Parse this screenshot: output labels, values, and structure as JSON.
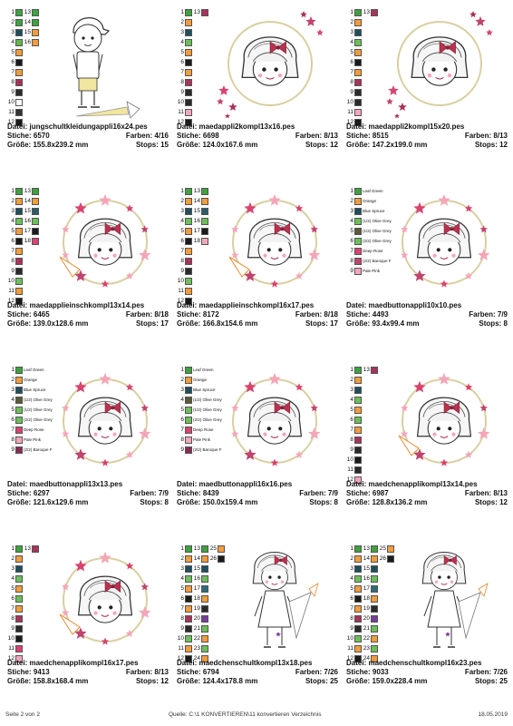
{
  "labels": {
    "file": "Datei:",
    "stitches": "Stiche:",
    "colors": "Farben:",
    "size": "Größe:",
    "stops": "Stops:"
  },
  "colors": {
    "1": "#3da33d",
    "2": "#f29c3c",
    "3": "#1f4e5e",
    "4": "#5fb84a",
    "5": "#f09a3c",
    "6": "#1a1a1a",
    "7": "#f29c3c",
    "8": "#a8325a",
    "9": "#2a2a2a",
    "10": "#ffffff",
    "11": "#333333",
    "12": "#1a1a1a",
    "13": "#c0446e",
    "14": "#f29c3c",
    "15": "#2b5a6a",
    "16": "#6bbf59",
    "17": "#1a1a1a",
    "18": "#d9436f",
    "19": "#f4a6b8",
    "20": "#8a2b52",
    "21": "#f29c3c",
    "22": "#2b2b2b",
    "23": "#6bbf59",
    "24": "#2d6b78",
    "25": "#e58a2e",
    "26": "#222222"
  },
  "cells": [
    {
      "file": "jungschultkleidungappli16x24.pes",
      "stitches": "6570",
      "colors": "4/16",
      "size": "155.8x239.2 mm",
      "stops": "15",
      "pic": "boy",
      "sw": [
        [
          "1",
          "#3da33d",
          "13",
          "#3da33d"
        ],
        [
          "2",
          "#3da33d",
          "14",
          "#3da33d"
        ],
        [
          "3",
          "#1f4e5e",
          "15",
          "#f29c3c"
        ],
        [
          "4",
          "#5fb84a",
          "16",
          "#f29c3c"
        ],
        [
          "5",
          "#f09a3c"
        ],
        [
          "6",
          "#1a1a1a"
        ],
        [
          "7",
          "#f29c3c"
        ],
        [
          "8",
          "#a8325a"
        ],
        [
          "9",
          "#2a2a2a"
        ],
        [
          "10",
          "#ffffff"
        ],
        [
          "11",
          "#333333"
        ],
        [
          "12",
          "#1a1a1a"
        ]
      ]
    },
    {
      "file": "maedappli2kompl13x16.pes",
      "stitches": "6698",
      "colors": "8/13",
      "size": "124.0x167.6 mm",
      "stops": "12",
      "pic": "girl-stars",
      "sw": [
        [
          "1",
          "#3da33d",
          "13",
          "#a8325a"
        ],
        [
          "2",
          "#f29c3c"
        ],
        [
          "3",
          "#1f4e5e"
        ],
        [
          "4",
          "#6bbf59"
        ],
        [
          "5",
          "#f29c3c"
        ],
        [
          "6",
          "#1a1a1a"
        ],
        [
          "7",
          "#f29c3c"
        ],
        [
          "8",
          "#a8325a"
        ],
        [
          "9",
          "#2a2a2a"
        ],
        [
          "10",
          "#2a2a2a"
        ],
        [
          "11",
          "#f4a6b8"
        ],
        [
          "12",
          "#1a1a1a"
        ]
      ]
    },
    {
      "file": "maedappli2kompl15x20.pes",
      "stitches": "8515",
      "colors": "8/13",
      "size": "147.2x199.0 mm",
      "stops": "12",
      "pic": "girl-stars",
      "sw": [
        [
          "1",
          "#3da33d",
          "13",
          "#a8325a"
        ],
        [
          "2",
          "#f29c3c"
        ],
        [
          "3",
          "#1f4e5e"
        ],
        [
          "4",
          "#6bbf59"
        ],
        [
          "5",
          "#f29c3c"
        ],
        [
          "6",
          "#1a1a1a"
        ],
        [
          "7",
          "#f29c3c"
        ],
        [
          "8",
          "#a8325a"
        ],
        [
          "9",
          "#2a2a2a"
        ],
        [
          "10",
          "#2a2a2a"
        ],
        [
          "11",
          "#f4a6b8"
        ],
        [
          "12",
          "#1a1a1a"
        ]
      ]
    },
    {
      "file": "maedapplieinschkompl13x14.pes",
      "stitches": "6465",
      "colors": "8/18",
      "size": "139.0x128.6 mm",
      "stops": "17",
      "pic": "girl-wreath",
      "sw": [
        [
          "1",
          "#3da33d",
          "13",
          "#3da33d"
        ],
        [
          "2",
          "#f29c3c",
          "14",
          "#f29c3c"
        ],
        [
          "3",
          "#1f4e5e",
          "15",
          "#2b5a6a"
        ],
        [
          "4",
          "#6bbf59",
          "16",
          "#6bbf59"
        ],
        [
          "5",
          "#f29c3c",
          "17",
          "#1a1a1a"
        ],
        [
          "6",
          "#1a1a1a",
          "18",
          "#d9436f"
        ],
        [
          "7",
          "#f29c3c"
        ],
        [
          "8",
          "#a8325a"
        ],
        [
          "9",
          "#2a2a2a"
        ],
        [
          "10",
          "#6bbf59"
        ],
        [
          "11",
          "#f29c3c"
        ],
        [
          "12",
          "#1a1a1a"
        ]
      ]
    },
    {
      "file": "maedapplieinschkompl16x17.pes",
      "stitches": "8172",
      "colors": "8/18",
      "size": "166.8x154.6 mm",
      "stops": "17",
      "pic": "girl-wreath",
      "sw": [
        [
          "1",
          "#3da33d",
          "13",
          "#3da33d"
        ],
        [
          "2",
          "#f29c3c",
          "14",
          "#f29c3c"
        ],
        [
          "3",
          "#1f4e5e",
          "15",
          "#2b5a6a"
        ],
        [
          "4",
          "#6bbf59",
          "16",
          "#6bbf59"
        ],
        [
          "5",
          "#f29c3c",
          "17",
          "#1a1a1a"
        ],
        [
          "6",
          "#1a1a1a",
          "18",
          "#f4a6b8"
        ],
        [
          "7",
          "#f29c3c"
        ],
        [
          "8",
          "#a8325a"
        ],
        [
          "9",
          "#2a2a2a"
        ],
        [
          "10",
          "#6bbf59"
        ],
        [
          "11",
          "#f29c3c"
        ],
        [
          "12",
          "#1a1a1a"
        ]
      ]
    },
    {
      "file": "maedbuttonappli10x10.pes",
      "stitches": "4493",
      "colors": "7/9",
      "size": "93.4x99.4 mm",
      "stops": "8",
      "pic": "girl-button",
      "sw": [
        [
          "1",
          "#3da33d",
          "Leaf Green"
        ],
        [
          "2",
          "#f29c3c",
          "Orange"
        ],
        [
          "3",
          "#1f4e5e",
          "Blue Spruce"
        ],
        [
          "4",
          "#6bbf59",
          "(1/2) Olive Grey"
        ],
        [
          "5",
          "#5a5a3a",
          "(1/2) Olive Grey"
        ],
        [
          "6",
          "#6bbf59",
          "(2/2) Olive Grey"
        ],
        [
          "7",
          "#d9436f",
          "Deep Rose"
        ],
        [
          "8",
          "#c0446e",
          "(2/2) Baroque F"
        ],
        [
          "9",
          "#f4a6b8",
          "Pale Pink"
        ]
      ]
    },
    {
      "file": "maedbuttonappli13x13.pes",
      "stitches": "6297",
      "colors": "7/9",
      "size": "121.6x129.6 mm",
      "stops": "8",
      "pic": "girl-button",
      "sw": [
        [
          "1",
          "#3da33d",
          "Leaf Green"
        ],
        [
          "2",
          "#f29c3c",
          "Orange"
        ],
        [
          "3",
          "#1f4e5e",
          "Blue Spruce"
        ],
        [
          "4",
          "#5a5a3a",
          "(1/2) Olive Grey"
        ],
        [
          "5",
          "#6bbf59",
          "(1/2) Olive Grey"
        ],
        [
          "6",
          "#6bbf59",
          "(2/2) Olive Grey"
        ],
        [
          "7",
          "#d9436f",
          "Deep Rose"
        ],
        [
          "8",
          "#f4a6b8",
          "Pale Pink"
        ],
        [
          "9",
          "#8a2b52",
          "(2/2) Baroque F"
        ]
      ]
    },
    {
      "file": "maedbuttonappli16x16.pes",
      "stitches": "8439",
      "colors": "7/9",
      "size": "150.0x159.4 mm",
      "stops": "8",
      "pic": "girl-button",
      "sw": [
        [
          "1",
          "#3da33d",
          "Leaf Green"
        ],
        [
          "2",
          "#f29c3c",
          "Orange"
        ],
        [
          "3",
          "#1f4e5e",
          "Blue Spruce"
        ],
        [
          "4",
          "#5a5a3a",
          "(1/2) Olive Grey"
        ],
        [
          "5",
          "#6bbf59",
          "(1/2) Olive Grey"
        ],
        [
          "6",
          "#6bbf59",
          "(2/2) Olive Grey"
        ],
        [
          "7",
          "#d9436f",
          "Deep Rose"
        ],
        [
          "8",
          "#f4a6b8",
          "Pale Pink"
        ],
        [
          "9",
          "#8a2b52",
          "(2/2) Baroque F"
        ]
      ]
    },
    {
      "file": "maedchenapplikompl13x14.pes",
      "stitches": "6987",
      "colors": "8/13",
      "size": "128.8x136.2 mm",
      "stops": "12",
      "pic": "girl-wreath",
      "sw": [
        [
          "1",
          "#3da33d",
          "13",
          "#a8325a"
        ],
        [
          "2",
          "#f29c3c"
        ],
        [
          "3",
          "#1f4e5e"
        ],
        [
          "4",
          "#6bbf59"
        ],
        [
          "5",
          "#f29c3c"
        ],
        [
          "6",
          "#6bbf59"
        ],
        [
          "7",
          "#f29c3c"
        ],
        [
          "8",
          "#a8325a"
        ],
        [
          "9",
          "#2a2a2a"
        ],
        [
          "10",
          "#1a1a1a"
        ],
        [
          "11",
          "#2a2a2a"
        ],
        [
          "12",
          "#f4a6b8"
        ]
      ]
    },
    {
      "file": "maedchenapplikompl16x17.pes",
      "stitches": "9413",
      "colors": "8/13",
      "size": "158.8x168.4 mm",
      "stops": "12",
      "pic": "girl-wreath",
      "sw": [
        [
          "1",
          "#3da33d",
          "13",
          "#a8325a"
        ],
        [
          "2",
          "#f29c3c"
        ],
        [
          "3",
          "#1f4e5e"
        ],
        [
          "4",
          "#6bbf59"
        ],
        [
          "5",
          "#f29c3c"
        ],
        [
          "6",
          "#6bbf59"
        ],
        [
          "7",
          "#f29c3c"
        ],
        [
          "8",
          "#a8325a"
        ],
        [
          "9",
          "#2a2a2a"
        ],
        [
          "10",
          "#1a1a1a"
        ],
        [
          "11",
          "#d9436f"
        ],
        [
          "12",
          "#f4a6b8"
        ]
      ]
    },
    {
      "file": "maedchenschultkompl13x18.pes",
      "stitches": "6794",
      "colors": "7/26",
      "size": "124.4x178.8 mm",
      "stops": "25",
      "pic": "girl-school",
      "sw": [
        [
          "1",
          "#3da33d",
          "13",
          "#3da33d",
          "25",
          "#f29c3c"
        ],
        [
          "2",
          "#f29c3c",
          "14",
          "#f29c3c",
          "26",
          "#1a1a1a"
        ],
        [
          "3",
          "#1f4e5e",
          "15",
          "#1f4e5e"
        ],
        [
          "4",
          "#6bbf59",
          "16",
          "#6bbf59"
        ],
        [
          "5",
          "#f29c3c",
          "17",
          "#2d6b78"
        ],
        [
          "6",
          "#1a1a1a",
          "18",
          "#f29c3c"
        ],
        [
          "7",
          "#f29c3c",
          "19",
          "#2a2a2a"
        ],
        [
          "8",
          "#a8325a",
          "20",
          "#7a3a9a"
        ],
        [
          "9",
          "#2a2a2a",
          "21",
          "#6bbf59"
        ],
        [
          "10",
          "#6bbf59",
          "22",
          "#f29c3c"
        ],
        [
          "11",
          "#f29c3c",
          "23",
          "#6bbf59"
        ],
        [
          "12",
          "#1a1a1a",
          "24",
          "#f29c3c"
        ]
      ]
    },
    {
      "file": "maedchenschultkompl16x23.pes",
      "stitches": "9033",
      "colors": "7/26",
      "size": "159.0x228.4 mm",
      "stops": "25",
      "pic": "girl-school",
      "sw": [
        [
          "1",
          "#3da33d",
          "13",
          "#3da33d",
          "25",
          "#f29c3c"
        ],
        [
          "2",
          "#f29c3c",
          "14",
          "#f29c3c",
          "26",
          "#1a1a1a"
        ],
        [
          "3",
          "#1f4e5e",
          "15",
          "#1f4e5e"
        ],
        [
          "4",
          "#6bbf59",
          "16",
          "#6bbf59"
        ],
        [
          "5",
          "#f29c3c",
          "17",
          "#2d6b78"
        ],
        [
          "6",
          "#1a1a1a",
          "18",
          "#f29c3c"
        ],
        [
          "7",
          "#f29c3c",
          "19",
          "#2a2a2a"
        ],
        [
          "8",
          "#a8325a",
          "20",
          "#7a3a9a"
        ],
        [
          "9",
          "#2a2a2a",
          "21",
          "#6bbf59"
        ],
        [
          "10",
          "#6bbf59",
          "22",
          "#f29c3c"
        ],
        [
          "11",
          "#f29c3c",
          "23",
          "#6bbf59"
        ],
        [
          "12",
          "#1a1a1a",
          "24",
          "#f29c3c"
        ]
      ]
    }
  ],
  "footer": {
    "page": "Seite 2 von 2",
    "source": "Quelle:  C:\\1 KONVERTIEREN\\11 konvertieren Verzeichnis",
    "date": "18.05.2019"
  }
}
